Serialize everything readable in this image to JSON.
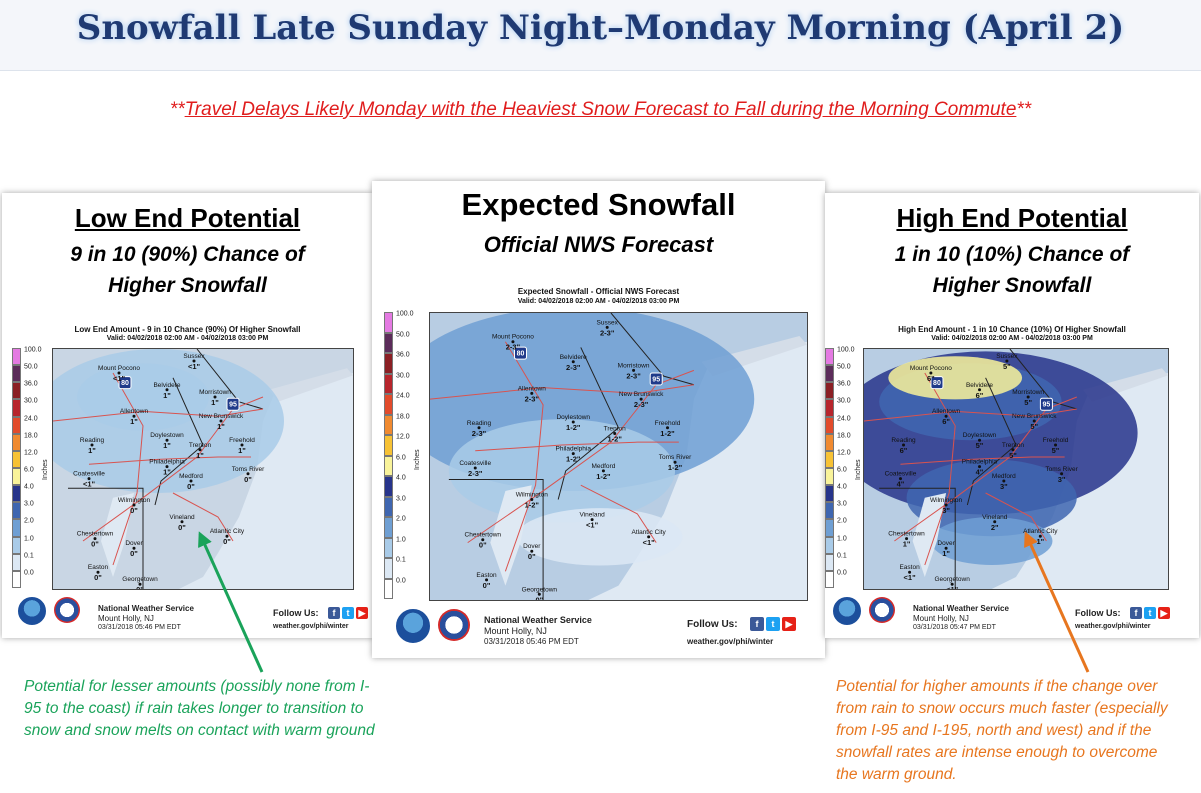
{
  "header": {
    "title": "Snowfall Late Sunday Night–Monday Morning (April 2)",
    "subtitle_prefix": "**",
    "subtitle_text": "Travel Delays Likely Monday with the Heaviest Snow Forecast to Fall during the Morning Commute",
    "subtitle_suffix": "**"
  },
  "legend_values": [
    "100.0",
    "50.0",
    "36.0",
    "30.0",
    "24.0",
    "18.0",
    "12.0",
    "6.0",
    "4.0",
    "3.0",
    "2.0",
    "1.0",
    "0.1",
    "0.0"
  ],
  "legend_colors": [
    "#e47ae2",
    "#5c2c5a",
    "#8b1f24",
    "#b7252c",
    "#e24b2b",
    "#f08a30",
    "#f7c235",
    "#f9f39a",
    "#27348b",
    "#3f66b0",
    "#6f9fd3",
    "#a9cbe8",
    "#dce8f4",
    "#ffffff"
  ],
  "legend_unit": "Inches",
  "panels": {
    "left": {
      "heading": "Low End Potential",
      "sub_line1": "9 in 10 (90%)  Chance of",
      "sub_line2": "Higher Snowfall",
      "map_title": "Low End Amount - 9 in 10 Chance (90%) Of Higher Snowfall",
      "map_valid": "Valid: 04/02/2018 02:00 AM - 04/02/2018 03:00 PM",
      "nws_name": "National Weather Service",
      "nws_office": "Mount Holly, NJ",
      "issued": "03/31/2018 05:46 PM EDT",
      "follow": "Follow Us:",
      "url": "weather.gov/phi/winter"
    },
    "center": {
      "heading": "Expected Snowfall",
      "sub_line1": "Official NWS Forecast",
      "map_title": "Expected Snowfall - Official NWS Forecast",
      "map_valid": "Valid: 04/02/2018 02:00 AM - 04/02/2018 03:00 PM",
      "nws_name": "National Weather Service",
      "nws_office": "Mount Holly, NJ",
      "issued": "03/31/2018 05:46 PM EDT",
      "follow": "Follow Us:",
      "url": "weather.gov/phi/winter"
    },
    "right": {
      "heading": "High End Potential",
      "sub_line1": "1 in 10 (10%)  Chance of",
      "sub_line2": "Higher Snowfall",
      "map_title": "High End Amount - 1 in 10 Chance (10%) Of Higher Snowfall",
      "map_valid": "Valid: 04/02/2018 02:00 AM - 04/02/2018 03:00 PM",
      "nws_name": "National Weather Service",
      "nws_office": "Mount Holly, NJ",
      "issued": "03/31/2018 05:47 PM EDT",
      "follow": "Follow Us:",
      "url": "weather.gov/phi/winter"
    }
  },
  "map_labels": {
    "left": {
      "cities": [
        "Mount Pocono",
        "Sussex",
        "Belvidere",
        "Morristown",
        "Allentown",
        "New Brunswick",
        "Reading",
        "Doylestown",
        "Trenton",
        "Freehold",
        "Philadelphia",
        "Coatesville",
        "Medford",
        "Toms River",
        "Wilmington",
        "Vineland",
        "Atlantic City",
        "Chestertown",
        "Dover",
        "Easton",
        "Georgetown"
      ],
      "amounts": [
        "<1\"",
        "<1\"",
        "1\"",
        "1\"",
        "1\"",
        "1\"",
        "1\"",
        "1\"",
        "1\"",
        "1\"",
        "1\"",
        "<1\"",
        "0\"",
        "0\"",
        "0\"",
        "0\"",
        "0\"",
        "0\"",
        "0\"",
        "0\"",
        "0\""
      ]
    },
    "center": {
      "cities": [
        "Mount Pocono",
        "Sussex",
        "Belvidere",
        "Morristown",
        "Allentown",
        "New Brunswick",
        "Reading",
        "Doylestown",
        "Trenton",
        "Freehold",
        "Philadelphia",
        "Coatesville",
        "Medford",
        "Toms River",
        "Wilmington",
        "Vineland",
        "Atlantic City",
        "Chestertown",
        "Dover",
        "Easton",
        "Georgetown"
      ],
      "amounts": [
        "2-3\"",
        "2-3\"",
        "2-3\"",
        "2-3\"",
        "2-3\"",
        "2-3\"",
        "2-3\"",
        "1-2\"",
        "1-2\"",
        "1-2\"",
        "1-2\"",
        "2-3\"",
        "1-2\"",
        "1-2\"",
        "1-2\"",
        "<1\"",
        "<1\"",
        "0\"",
        "0\"",
        "0\"",
        "0\""
      ]
    },
    "right": {
      "cities": [
        "Mount Pocono",
        "Sussex",
        "Belvidere",
        "Morristown",
        "Allentown",
        "New Brunswick",
        "Reading",
        "Doylestown",
        "Trenton",
        "Freehold",
        "Philadelphia",
        "Coatesville",
        "Medford",
        "Toms River",
        "Wilmington",
        "Vineland",
        "Atlantic City",
        "Chestertown",
        "Dover",
        "Easton",
        "Georgetown"
      ],
      "amounts": [
        "6\"",
        "5\"",
        "6\"",
        "5\"",
        "6\"",
        "5\"",
        "6\"",
        "5\"",
        "5\"",
        "5\"",
        "4\"",
        "4\"",
        "3\"",
        "3\"",
        "3\"",
        "2\"",
        "1\"",
        "1\"",
        "1\"",
        "<1\"",
        "<1\""
      ]
    }
  },
  "highway_labels": [
    "80",
    "95"
  ],
  "notes": {
    "left": "Potential for lesser amounts (possibly none from I-95 to the coast) if rain takes longer to transition to snow and snow melts on contact with warm ground",
    "right": "Potential for higher amounts if the change over from rain to snow occurs much faster (especially from I-95 and I-195, north and west) and if the snowfall rates are intense enough to overcome the warm ground."
  },
  "colors": {
    "title": "#1f3a73",
    "subtitle": "#e01d1d",
    "note_left": "#1aa35a",
    "note_right": "#e7761f",
    "arrow_left": "#1aa35a",
    "arrow_right": "#e7761f"
  },
  "icons": [
    "noaa-logo-icon",
    "nws-logo-icon",
    "facebook-icon",
    "twitter-icon",
    "youtube-icon"
  ]
}
